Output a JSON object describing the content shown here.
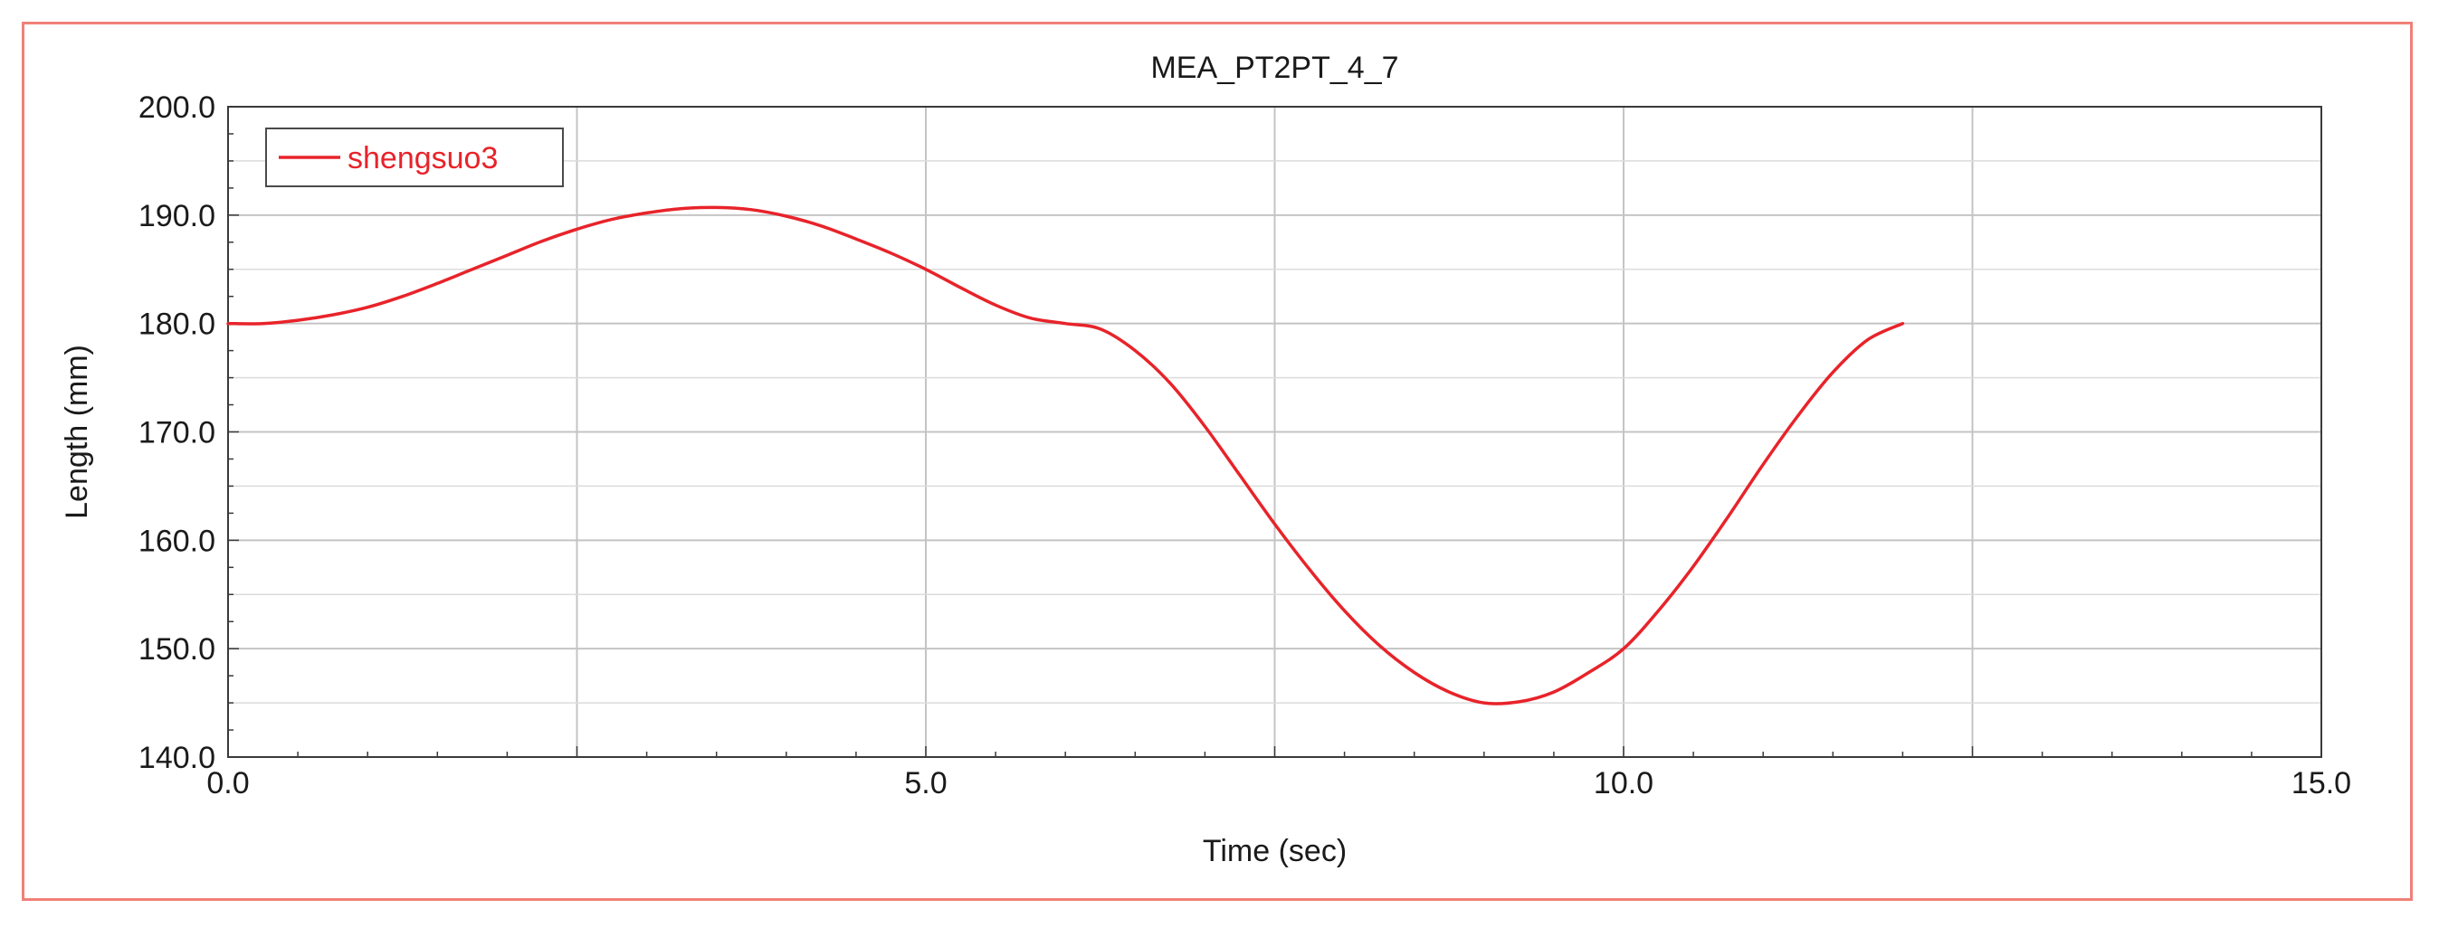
{
  "chart_data": {
    "type": "line",
    "title": "MEA_PT2PT_4_7",
    "xlabel": "Time (sec)",
    "ylabel": "Length (mm)",
    "xlim": [
      0,
      15
    ],
    "ylim": [
      140,
      200
    ],
    "x_ticks": [
      0,
      5,
      10,
      15
    ],
    "x_tick_labels": [
      "0.0",
      "5.0",
      "10.0",
      "15.0"
    ],
    "y_ticks": [
      140,
      150,
      160,
      170,
      180,
      190,
      200
    ],
    "y_tick_labels": [
      "140.0",
      "150.0",
      "160.0",
      "170.0",
      "180.0",
      "190.0",
      "200.0"
    ],
    "grid": true,
    "legend_position": "top-left",
    "series": [
      {
        "name": "shengsuo3",
        "color": "#e8232a",
        "x": [
          0,
          0.25,
          0.5,
          0.75,
          1.0,
          1.25,
          1.5,
          1.75,
          2.0,
          2.25,
          2.5,
          2.75,
          3.0,
          3.25,
          3.5,
          3.75,
          4.0,
          4.25,
          4.5,
          4.75,
          5.0,
          5.25,
          5.5,
          5.75,
          6.0,
          6.25,
          6.5,
          6.75,
          7.0,
          7.25,
          7.5,
          7.75,
          8.0,
          8.25,
          8.5,
          8.75,
          9.0,
          9.25,
          9.5,
          9.75,
          10.0,
          10.25,
          10.5,
          10.75,
          11.0,
          11.25,
          11.5,
          11.75,
          12.0
        ],
        "y": [
          180.0,
          180.0,
          180.3,
          180.8,
          181.5,
          182.5,
          183.7,
          185.0,
          186.3,
          187.6,
          188.7,
          189.6,
          190.2,
          190.6,
          190.7,
          190.5,
          189.9,
          189.0,
          187.8,
          186.5,
          185.0,
          183.3,
          181.7,
          180.5,
          180.0,
          179.5,
          177.5,
          174.5,
          170.5,
          166.0,
          161.5,
          157.3,
          153.5,
          150.3,
          147.8,
          146.0,
          145.0,
          145.1,
          146.0,
          147.8,
          150.0,
          153.5,
          157.6,
          162.2,
          167.0,
          171.5,
          175.5,
          178.5,
          180.0
        ]
      }
    ]
  }
}
